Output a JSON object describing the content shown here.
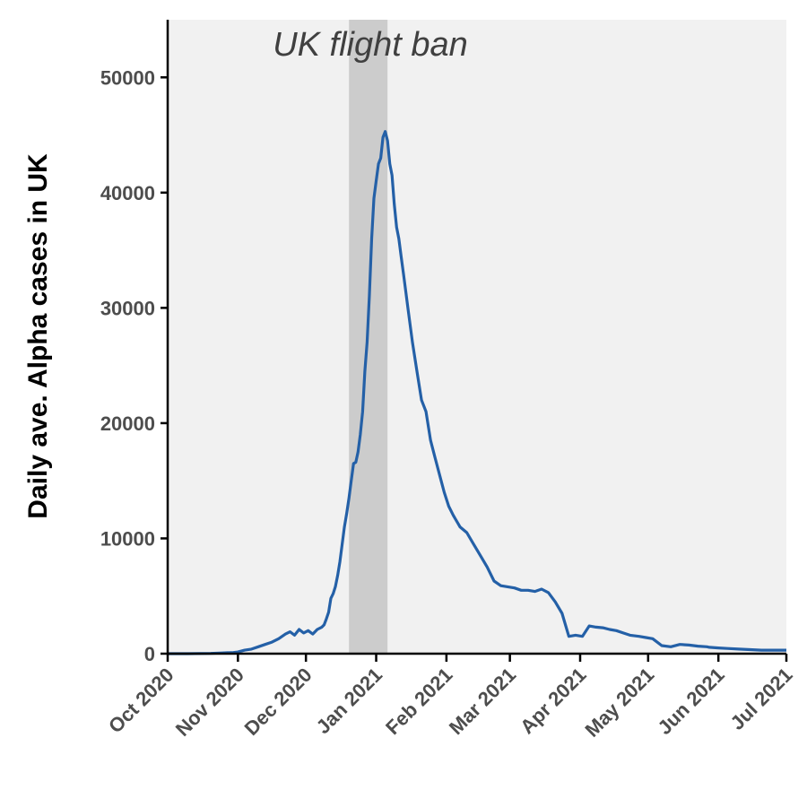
{
  "chart_data": {
    "type": "line",
    "title": "",
    "xlabel": "",
    "ylabel": "Daily ave. Alpha cases in UK",
    "xlim": [
      "2020-10-01",
      "2021-07-01"
    ],
    "ylim": [
      0,
      55000
    ],
    "x_ticks": [
      {
        "date": "2020-10-01",
        "label": "Oct 2020"
      },
      {
        "date": "2020-11-01",
        "label": "Nov 2020"
      },
      {
        "date": "2020-12-01",
        "label": "Dec 2020"
      },
      {
        "date": "2021-01-01",
        "label": "Jan 2021"
      },
      {
        "date": "2021-02-01",
        "label": "Feb 2021"
      },
      {
        "date": "2021-03-01",
        "label": "Mar 2021"
      },
      {
        "date": "2021-04-01",
        "label": "Apr 2021"
      },
      {
        "date": "2021-05-01",
        "label": "May 2021"
      },
      {
        "date": "2021-06-01",
        "label": "Jun 2021"
      },
      {
        "date": "2021-07-01",
        "label": "Jul 2021"
      }
    ],
    "y_ticks": [
      {
        "value": 0,
        "label": "0"
      },
      {
        "value": 10000,
        "label": "10000"
      },
      {
        "value": 20000,
        "label": "20000"
      },
      {
        "value": 30000,
        "label": "30000"
      },
      {
        "value": 40000,
        "label": "40000"
      },
      {
        "value": 50000,
        "label": "50000"
      }
    ],
    "grid": false,
    "shaded_region": {
      "start": "2020-12-20",
      "end": "2021-01-06",
      "label": "UK flight ban"
    },
    "colors": {
      "line": "#2460a7",
      "panel": "#f1f1f1",
      "band": "#cccccc"
    },
    "series": [
      {
        "x": [
          "2020-10-01",
          "2020-10-10",
          "2020-10-20",
          "2020-10-25",
          "2020-10-30",
          "2020-11-01",
          "2020-11-04",
          "2020-11-07",
          "2020-11-10",
          "2020-11-13",
          "2020-11-16",
          "2020-11-19",
          "2020-11-22",
          "2020-11-24",
          "2020-11-26",
          "2020-11-28",
          "2020-11-30",
          "2020-12-02",
          "2020-12-04",
          "2020-12-06",
          "2020-12-08",
          "2020-12-09",
          "2020-12-10",
          "2020-12-11",
          "2020-12-12",
          "2020-12-13",
          "2020-12-14",
          "2020-12-15",
          "2020-12-16",
          "2020-12-17",
          "2020-12-18",
          "2020-12-19",
          "2020-12-20",
          "2020-12-21",
          "2020-12-22",
          "2020-12-23",
          "2020-12-24",
          "2020-12-25",
          "2020-12-26",
          "2020-12-27",
          "2020-12-28",
          "2020-12-29",
          "2020-12-30",
          "2020-12-31",
          "2021-01-01",
          "2021-01-02",
          "2021-01-03",
          "2021-01-04",
          "2021-01-05",
          "2021-01-06",
          "2021-01-07",
          "2021-01-08",
          "2021-01-09",
          "2021-01-10",
          "2021-01-11",
          "2021-01-12",
          "2021-01-13",
          "2021-01-14",
          "2021-01-15",
          "2021-01-17",
          "2021-01-19",
          "2021-01-21",
          "2021-01-23",
          "2021-01-25",
          "2021-01-27",
          "2021-01-29",
          "2021-01-31",
          "2021-02-02",
          "2021-02-04",
          "2021-02-07",
          "2021-02-10",
          "2021-02-13",
          "2021-02-16",
          "2021-02-19",
          "2021-02-22",
          "2021-02-25",
          "2021-02-28",
          "2021-03-03",
          "2021-03-06",
          "2021-03-09",
          "2021-03-12",
          "2021-03-15",
          "2021-03-18",
          "2021-03-21",
          "2021-03-24",
          "2021-03-27",
          "2021-03-30",
          "2021-04-02",
          "2021-04-05",
          "2021-04-08",
          "2021-04-11",
          "2021-04-14",
          "2021-04-17",
          "2021-04-20",
          "2021-04-23",
          "2021-04-25",
          "2021-04-27",
          "2021-04-30",
          "2021-05-03",
          "2021-05-07",
          "2021-05-11",
          "2021-05-15",
          "2021-05-19",
          "2021-05-23",
          "2021-05-27",
          "2021-05-28",
          "2021-06-01",
          "2021-06-05",
          "2021-06-10",
          "2021-06-15",
          "2021-06-20",
          "2021-06-25",
          "2021-07-01"
        ],
        "y": [
          0,
          0,
          20,
          60,
          100,
          150,
          300,
          400,
          600,
          800,
          1000,
          1300,
          1700,
          1900,
          1600,
          2100,
          1800,
          2000,
          1700,
          2100,
          2300,
          2500,
          3000,
          3600,
          4800,
          5200,
          5800,
          6800,
          8000,
          9500,
          11000,
          12200,
          13500,
          15000,
          16500,
          16600,
          17500,
          19000,
          21000,
          24500,
          27000,
          31000,
          36000,
          39500,
          41000,
          42500,
          43000,
          44800,
          45300,
          44500,
          42500,
          41500,
          39000,
          37000,
          36000,
          34500,
          33000,
          31500,
          30000,
          27000,
          24500,
          22000,
          21000,
          18500,
          17000,
          15500,
          14000,
          12800,
          12000,
          11000,
          10500,
          9500,
          8500,
          7500,
          6300,
          5900,
          5800,
          5700,
          5500,
          5500,
          5400,
          5600,
          5300,
          4500,
          3500,
          1500,
          1600,
          1500,
          2400,
          2300,
          2250,
          2100,
          2000,
          1800,
          1600,
          1550,
          1500,
          1400,
          1300,
          700,
          600,
          800,
          750,
          650,
          600,
          550,
          500,
          450,
          400,
          350,
          300,
          300,
          300
        ]
      }
    ]
  }
}
